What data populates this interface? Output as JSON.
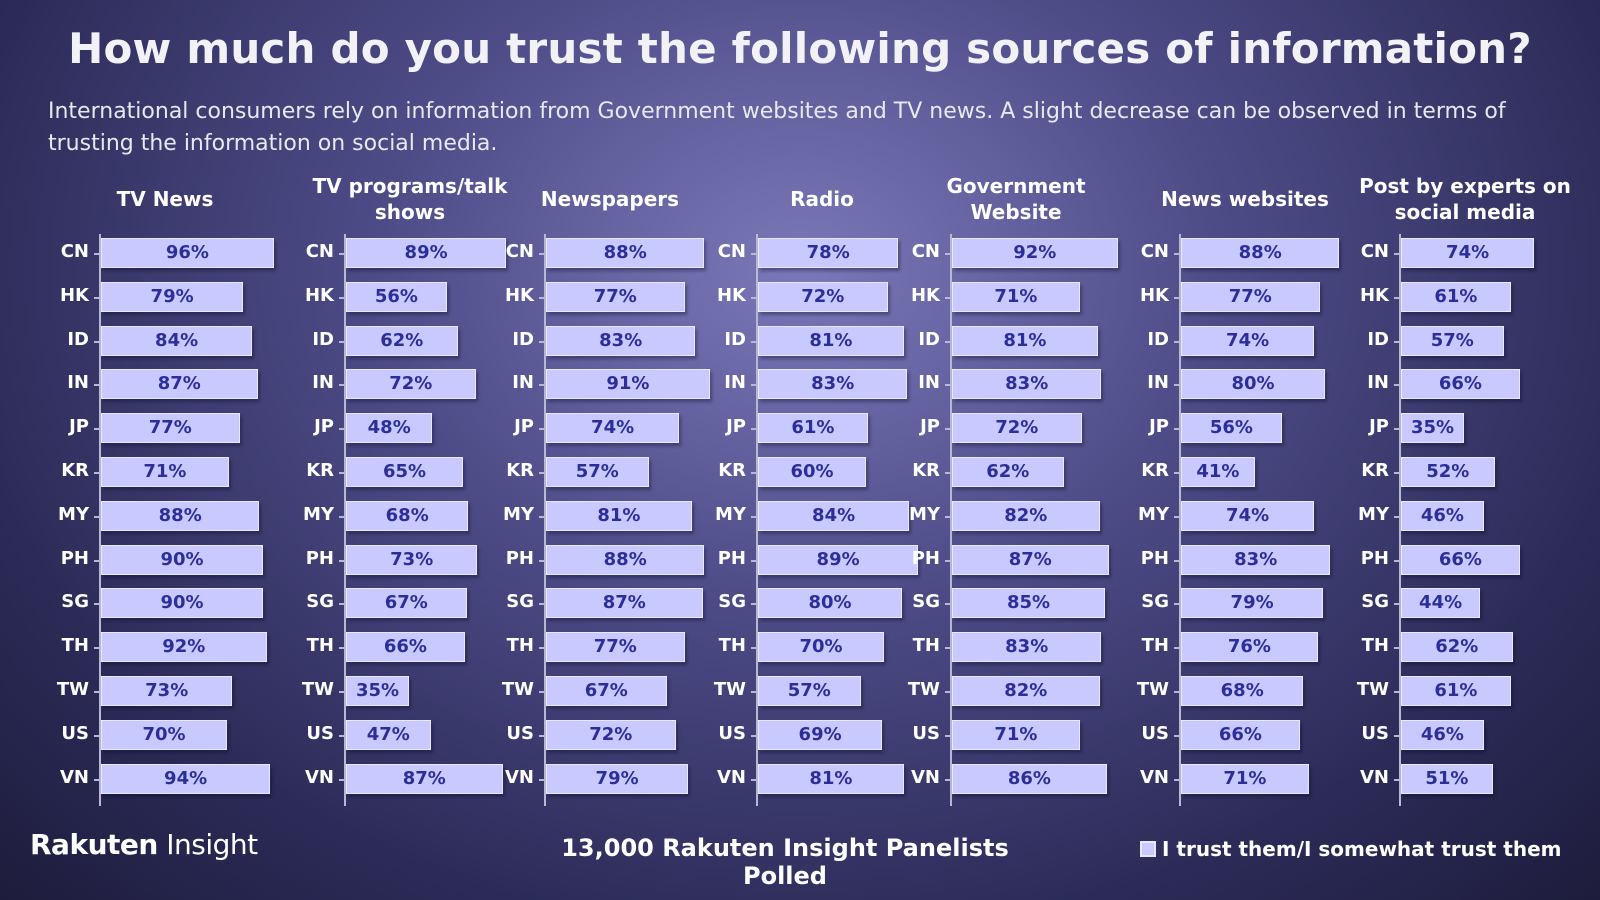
{
  "title": "How much do you trust the following sources of information?",
  "subtitle": "International consumers rely on information from Government websites and TV news. A slight decrease can be observed in terms of trusting the information on social media.",
  "footer": {
    "logo_part1": "Rakuten",
    "logo_part2": " Insight",
    "panelists": "13,000  Rakuten Insight Panelists Polled",
    "legend_label": "I trust them/I somewhat trust them"
  },
  "colors": {
    "bar": "#c7c9ff",
    "bar_text": "#2c2f9a",
    "background": "#4d4b86"
  },
  "chart_data": [
    {
      "type": "bar",
      "orientation": "horizontal",
      "title": "TV News",
      "categories": [
        "CN",
        "HK",
        "ID",
        "IN",
        "JP",
        "KR",
        "MY",
        "PH",
        "SG",
        "TH",
        "TW",
        "US",
        "VN"
      ],
      "values": [
        96,
        79,
        84,
        87,
        77,
        71,
        88,
        90,
        90,
        92,
        73,
        70,
        94
      ],
      "labels": [
        "96%",
        "79%",
        "84%",
        "87%",
        "77%",
        "71%",
        "88%",
        "90%",
        "90%",
        "92%",
        "73%",
        "70%",
        "94%"
      ]
    },
    {
      "type": "bar",
      "orientation": "horizontal",
      "title": "TV programs/talk shows",
      "categories": [
        "CN",
        "HK",
        "ID",
        "IN",
        "JP",
        "KR",
        "MY",
        "PH",
        "SG",
        "TH",
        "TW",
        "US",
        "VN"
      ],
      "values": [
        89,
        56,
        62,
        72,
        48,
        65,
        68,
        73,
        67,
        66,
        35,
        47,
        87
      ],
      "labels": [
        "89%",
        "56%",
        "62%",
        "72%",
        "48%",
        "65%",
        "68%",
        "73%",
        "67%",
        "66%",
        "35%",
        "47%",
        "87%"
      ]
    },
    {
      "type": "bar",
      "orientation": "horizontal",
      "title": "Newspapers",
      "categories": [
        "CN",
        "HK",
        "ID",
        "IN",
        "JP",
        "KR",
        "MY",
        "PH",
        "SG",
        "TH",
        "TW",
        "US",
        "VN"
      ],
      "values": [
        88,
        77,
        83,
        91,
        74,
        57,
        81,
        88,
        87,
        77,
        67,
        72,
        79
      ],
      "labels": [
        "88%",
        "77%",
        "83%",
        "91%",
        "74%",
        "57%",
        "81%",
        "88%",
        "87%",
        "77%",
        "67%",
        "72%",
        "79%"
      ]
    },
    {
      "type": "bar",
      "orientation": "horizontal",
      "title": "Radio",
      "categories": [
        "CN",
        "HK",
        "ID",
        "IN",
        "JP",
        "KR",
        "MY",
        "PH",
        "SG",
        "TH",
        "TW",
        "US",
        "VN"
      ],
      "values": [
        78,
        72,
        81,
        83,
        61,
        60,
        84,
        89,
        80,
        70,
        57,
        69,
        81
      ],
      "labels": [
        "78%",
        "72%",
        "81%",
        "83%",
        "61%",
        "60%",
        "84%",
        "89%",
        "80%",
        "70%",
        "57%",
        "69%",
        "81%"
      ]
    },
    {
      "type": "bar",
      "orientation": "horizontal",
      "title": "Government Website",
      "categories": [
        "CN",
        "HK",
        "ID",
        "IN",
        "JP",
        "KR",
        "MY",
        "PH",
        "SG",
        "TH",
        "TW",
        "US",
        "VN"
      ],
      "values": [
        92,
        71,
        81,
        83,
        72,
        62,
        82,
        87,
        85,
        83,
        82,
        71,
        86
      ],
      "labels": [
        "92%",
        "71%",
        "81%",
        "83%",
        "72%",
        "62%",
        "82%",
        "87%",
        "85%",
        "83%",
        "82%",
        "71%",
        "86%"
      ]
    },
    {
      "type": "bar",
      "orientation": "horizontal",
      "title": "News websites",
      "categories": [
        "CN",
        "HK",
        "ID",
        "IN",
        "JP",
        "KR",
        "MY",
        "PH",
        "SG",
        "TH",
        "TW",
        "US",
        "VN"
      ],
      "values": [
        88,
        77,
        74,
        80,
        56,
        41,
        74,
        83,
        79,
        76,
        68,
        66,
        71
      ],
      "labels": [
        "88%",
        "77%",
        "74%",
        "80%",
        "56%",
        "41%",
        "74%",
        "83%",
        "79%",
        "76%",
        "68%",
        "66%",
        "71%"
      ]
    },
    {
      "type": "bar",
      "orientation": "horizontal",
      "title": "Post by experts on social media",
      "categories": [
        "CN",
        "HK",
        "ID",
        "IN",
        "JP",
        "KR",
        "MY",
        "PH",
        "SG",
        "TH",
        "TW",
        "US",
        "VN"
      ],
      "values": [
        74,
        61,
        57,
        66,
        35,
        52,
        46,
        66,
        44,
        62,
        61,
        46,
        51
      ],
      "labels": [
        "74%",
        "61%",
        "57%",
        "66%",
        "35%",
        "52%",
        "46%",
        "66%",
        "44%",
        "62%",
        "61%",
        "46%",
        "51%"
      ]
    }
  ]
}
